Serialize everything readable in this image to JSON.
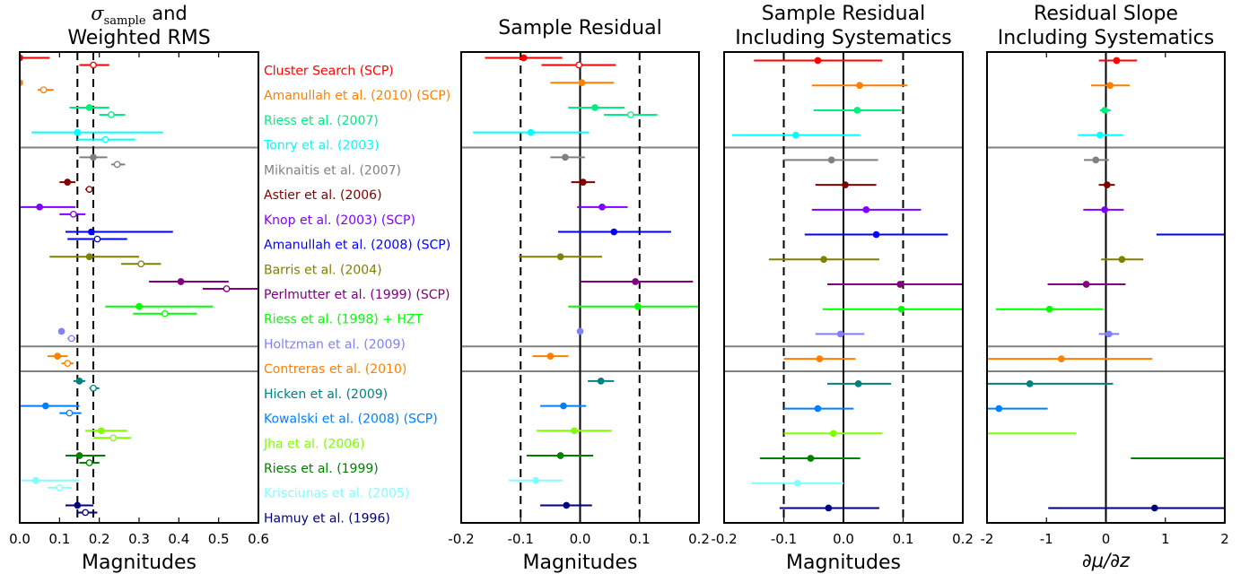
{
  "chart_data": [
    {
      "type": "scatter",
      "panel": "sigma-rms",
      "title_line1": "σsample and",
      "title_symbol": "σ",
      "title_subscript": "sample",
      "title_rest": " and",
      "title_line2": "Weighted RMS",
      "xlabel": "Magnitudes",
      "xlim": [
        0,
        0.6
      ],
      "xticks": [
        "0.0",
        "0.1",
        "0.2",
        "0.3",
        "0.4",
        "0.5",
        "0.6"
      ],
      "vlines_dashed": [
        0.145,
        0.185
      ],
      "hlines_after_rows": [
        3,
        11,
        12
      ],
      "filled_series": [
        {
          "row": 0,
          "x": 0.0,
          "lo": 0.0,
          "hi": 0.075
        },
        {
          "row": 1,
          "x": 0.0,
          "lo": 0.0,
          "hi": 0.0
        },
        {
          "row": 2,
          "x": 0.175,
          "lo": 0.125,
          "hi": 0.225
        },
        {
          "row": 3,
          "x": 0.145,
          "lo": 0.03,
          "hi": 0.36
        },
        {
          "row": 4,
          "x": 0.185,
          "lo": 0.15,
          "hi": 0.22
        },
        {
          "row": 5,
          "x": 0.12,
          "lo": 0.1,
          "hi": 0.14
        },
        {
          "row": 6,
          "x": 0.05,
          "lo": 0.0,
          "hi": 0.14
        },
        {
          "row": 7,
          "x": 0.18,
          "lo": 0.115,
          "hi": 0.385
        },
        {
          "row": 8,
          "x": 0.175,
          "lo": 0.075,
          "hi": 0.3
        },
        {
          "row": 9,
          "x": 0.405,
          "lo": 0.325,
          "hi": 0.525
        },
        {
          "row": 10,
          "x": 0.3,
          "lo": 0.215,
          "hi": 0.485
        },
        {
          "row": 11,
          "x": 0.105,
          "lo": 0.1,
          "hi": 0.11
        },
        {
          "row": 12,
          "x": 0.095,
          "lo": 0.07,
          "hi": 0.12
        },
        {
          "row": 13,
          "x": 0.15,
          "lo": 0.135,
          "hi": 0.165
        },
        {
          "row": 14,
          "x": 0.065,
          "lo": 0.0,
          "hi": 0.15
        },
        {
          "row": 15,
          "x": 0.205,
          "lo": 0.165,
          "hi": 0.27
        },
        {
          "row": 16,
          "x": 0.15,
          "lo": 0.115,
          "hi": 0.215
        },
        {
          "row": 17,
          "x": 0.04,
          "lo": 0.0,
          "hi": 0.15
        },
        {
          "row": 18,
          "x": 0.145,
          "lo": 0.115,
          "hi": 0.185
        }
      ],
      "open_series": [
        {
          "row": 0,
          "x": 0.185,
          "lo": 0.15,
          "hi": 0.225
        },
        {
          "row": 1,
          "x": 0.06,
          "lo": 0.045,
          "hi": 0.085
        },
        {
          "row": 2,
          "x": 0.23,
          "lo": 0.2,
          "hi": 0.265
        },
        {
          "row": 3,
          "x": 0.215,
          "lo": 0.145,
          "hi": 0.29
        },
        {
          "row": 4,
          "x": 0.245,
          "lo": 0.23,
          "hi": 0.265
        },
        {
          "row": 5,
          "x": 0.175,
          "lo": 0.165,
          "hi": 0.185
        },
        {
          "row": 6,
          "x": 0.135,
          "lo": 0.1,
          "hi": 0.165
        },
        {
          "row": 7,
          "x": 0.195,
          "lo": 0.12,
          "hi": 0.27
        },
        {
          "row": 8,
          "x": 0.305,
          "lo": 0.255,
          "hi": 0.355
        },
        {
          "row": 9,
          "x": 0.52,
          "lo": 0.46,
          "hi": 0.6
        },
        {
          "row": 10,
          "x": 0.365,
          "lo": 0.285,
          "hi": 0.445
        },
        {
          "row": 11,
          "x": 0.13,
          "lo": 0.12,
          "hi": 0.14
        },
        {
          "row": 12,
          "x": 0.12,
          "lo": 0.105,
          "hi": 0.135
        },
        {
          "row": 13,
          "x": 0.185,
          "lo": 0.175,
          "hi": 0.2
        },
        {
          "row": 14,
          "x": 0.125,
          "lo": 0.1,
          "hi": 0.155
        },
        {
          "row": 15,
          "x": 0.235,
          "lo": 0.185,
          "hi": 0.28
        },
        {
          "row": 16,
          "x": 0.175,
          "lo": 0.15,
          "hi": 0.2
        },
        {
          "row": 17,
          "x": 0.1,
          "lo": 0.07,
          "hi": 0.13
        },
        {
          "row": 18,
          "x": 0.165,
          "lo": 0.145,
          "hi": 0.195
        }
      ]
    },
    {
      "type": "scatter",
      "panel": "sample-residual",
      "title_line1": "",
      "title_line2": "Sample Residual",
      "xlabel": "Magnitudes",
      "xlim": [
        -0.2,
        0.2
      ],
      "xticks": [
        "-0.2",
        "-0.1",
        "0.0",
        "0.1",
        "0.2"
      ],
      "vline_solid": 0,
      "vlines_dashed": [
        -0.1,
        0.1
      ],
      "hlines_after_rows": [
        3,
        11,
        12
      ],
      "filled_series": [
        {
          "row": 0,
          "x": -0.095,
          "lo": -0.16,
          "hi": -0.03
        },
        {
          "row": 1,
          "x": 0.003,
          "lo": -0.05,
          "hi": 0.057
        },
        {
          "row": 2,
          "x": 0.025,
          "lo": -0.02,
          "hi": 0.075
        },
        {
          "row": 3,
          "x": -0.083,
          "lo": -0.18,
          "hi": 0.015
        },
        {
          "row": 4,
          "x": -0.025,
          "lo": -0.05,
          "hi": 0.008
        },
        {
          "row": 5,
          "x": 0.005,
          "lo": -0.015,
          "hi": 0.025
        },
        {
          "row": 6,
          "x": 0.037,
          "lo": -0.005,
          "hi": 0.08
        },
        {
          "row": 7,
          "x": 0.057,
          "lo": -0.037,
          "hi": 0.153
        },
        {
          "row": 8,
          "x": -0.033,
          "lo": -0.103,
          "hi": 0.037
        },
        {
          "row": 9,
          "x": 0.093,
          "lo": 0.0,
          "hi": 0.19
        },
        {
          "row": 10,
          "x": 0.097,
          "lo": -0.02,
          "hi": 0.2
        },
        {
          "row": 11,
          "x": 0.0,
          "lo": -0.005,
          "hi": 0.005
        },
        {
          "row": 12,
          "x": -0.05,
          "lo": -0.08,
          "hi": -0.02
        },
        {
          "row": 13,
          "x": 0.035,
          "lo": 0.013,
          "hi": 0.057
        },
        {
          "row": 14,
          "x": -0.028,
          "lo": -0.067,
          "hi": 0.01
        },
        {
          "row": 15,
          "x": -0.01,
          "lo": -0.073,
          "hi": 0.053
        },
        {
          "row": 16,
          "x": -0.033,
          "lo": -0.09,
          "hi": 0.022
        },
        {
          "row": 17,
          "x": -0.075,
          "lo": -0.12,
          "hi": -0.03
        },
        {
          "row": 18,
          "x": -0.023,
          "lo": -0.067,
          "hi": 0.02
        }
      ],
      "open_series": [
        {
          "row": 0,
          "x": -0.002,
          "lo": -0.065,
          "hi": 0.06
        },
        {
          "row": 2,
          "x": 0.085,
          "lo": 0.04,
          "hi": 0.13
        }
      ]
    },
    {
      "type": "scatter",
      "panel": "sample-residual-systematics",
      "title_line1": "Sample Residual",
      "title_line2": "Including Systematics",
      "xlabel": "Magnitudes",
      "xlim": [
        -0.2,
        0.2
      ],
      "xticks": [
        "-0.2",
        "-0.1",
        "0.0",
        "0.1",
        "0.2"
      ],
      "vline_solid": 0,
      "vlines_dashed": [
        -0.1,
        0.1
      ],
      "hlines_after_rows": [
        3,
        11,
        12
      ],
      "filled_series": [
        {
          "row": 0,
          "x": -0.043,
          "lo": -0.15,
          "hi": 0.065
        },
        {
          "row": 1,
          "x": 0.027,
          "lo": -0.053,
          "hi": 0.107
        },
        {
          "row": 2,
          "x": 0.023,
          "lo": -0.05,
          "hi": 0.097
        },
        {
          "row": 3,
          "x": -0.08,
          "lo": -0.187,
          "hi": 0.028
        },
        {
          "row": 4,
          "x": -0.02,
          "lo": -0.1,
          "hi": 0.058
        },
        {
          "row": 5,
          "x": 0.003,
          "lo": -0.047,
          "hi": 0.055
        },
        {
          "row": 6,
          "x": 0.038,
          "lo": -0.053,
          "hi": 0.13
        },
        {
          "row": 7,
          "x": 0.055,
          "lo": -0.065,
          "hi": 0.175
        },
        {
          "row": 8,
          "x": -0.033,
          "lo": -0.125,
          "hi": 0.06
        },
        {
          "row": 9,
          "x": 0.095,
          "lo": -0.027,
          "hi": 0.2
        },
        {
          "row": 10,
          "x": 0.097,
          "lo": -0.035,
          "hi": 0.2
        },
        {
          "row": 11,
          "x": -0.005,
          "lo": -0.047,
          "hi": 0.035
        },
        {
          "row": 12,
          "x": -0.04,
          "lo": -0.1,
          "hi": 0.02
        },
        {
          "row": 13,
          "x": 0.025,
          "lo": -0.027,
          "hi": 0.08
        },
        {
          "row": 14,
          "x": -0.043,
          "lo": -0.1,
          "hi": 0.017
        },
        {
          "row": 15,
          "x": -0.017,
          "lo": -0.1,
          "hi": 0.065
        },
        {
          "row": 16,
          "x": -0.055,
          "lo": -0.14,
          "hi": 0.028
        },
        {
          "row": 17,
          "x": -0.077,
          "lo": -0.155,
          "hi": 0.0
        },
        {
          "row": 18,
          "x": -0.025,
          "lo": -0.107,
          "hi": 0.06
        }
      ],
      "open_series": []
    },
    {
      "type": "scatter",
      "panel": "residual-slope-systematics",
      "title_line1": "Residual Slope",
      "title_line2": "Including Systematics",
      "xlabel": "∂μ/∂z",
      "xlim": [
        -2,
        2
      ],
      "xticks": [
        "-2",
        "-1",
        "0",
        "1",
        "2"
      ],
      "vline_solid": 0,
      "vlines_dashed": [],
      "hlines_after_rows": [
        3,
        11,
        12
      ],
      "filled_series": [
        {
          "row": 0,
          "x": 0.18,
          "lo": -0.12,
          "hi": 0.52
        },
        {
          "row": 1,
          "x": 0.07,
          "lo": -0.25,
          "hi": 0.4
        },
        {
          "row": 2,
          "x": -0.02,
          "lo": -0.1,
          "hi": 0.08
        },
        {
          "row": 3,
          "x": -0.1,
          "lo": -0.47,
          "hi": 0.28
        },
        {
          "row": 4,
          "x": -0.17,
          "lo": -0.37,
          "hi": 0.05
        },
        {
          "row": 5,
          "x": 0.02,
          "lo": -0.12,
          "hi": 0.15
        },
        {
          "row": 6,
          "x": -0.02,
          "lo": -0.38,
          "hi": 0.3
        },
        {
          "row": 7,
          "x": 2.1,
          "lo": 0.85,
          "hi": 2.0
        },
        {
          "row": 8,
          "x": 0.27,
          "lo": -0.08,
          "hi": 0.63
        },
        {
          "row": 9,
          "x": -0.33,
          "lo": -0.98,
          "hi": 0.33
        },
        {
          "row": 10,
          "x": -0.95,
          "lo": -1.85,
          "hi": -0.05
        },
        {
          "row": 11,
          "x": 0.05,
          "lo": -0.12,
          "hi": 0.22
        },
        {
          "row": 12,
          "x": -0.75,
          "lo": -2.0,
          "hi": 0.78
        },
        {
          "row": 13,
          "x": -1.28,
          "lo": -2.0,
          "hi": 0.12
        },
        {
          "row": 14,
          "x": -1.8,
          "lo": -2.0,
          "hi": -0.98
        },
        {
          "row": 15,
          "x": -2.1,
          "lo": -2.0,
          "hi": -0.5
        },
        {
          "row": 16,
          "x": 2.1,
          "lo": 0.42,
          "hi": 2.0
        },
        {
          "row": 17,
          "x": 2.1,
          "lo": 2.1,
          "hi": 2.1
        },
        {
          "row": 18,
          "x": 0.82,
          "lo": -0.97,
          "hi": 2.0
        }
      ],
      "open_series": []
    }
  ],
  "datasets": [
    {
      "name": "Cluster Search (SCP)",
      "color": "#ff0000"
    },
    {
      "name": "Amanullah et al. (2010) (SCP)",
      "color": "#ff8000"
    },
    {
      "name": "Riess et al. (2007)",
      "color": "#00ee80"
    },
    {
      "name": "Tonry et al. (2003)",
      "color": "#00ffff"
    },
    {
      "name": "Miknaitis et al. (2007)",
      "color": "#808080"
    },
    {
      "name": "Astier et al. (2006)",
      "color": "#800000"
    },
    {
      "name": "Knop et al. (2003) (SCP)",
      "color": "#8000ff"
    },
    {
      "name": "Amanullah et al. (2008) (SCP)",
      "color": "#0000ff"
    },
    {
      "name": "Barris et al. (2004)",
      "color": "#808000"
    },
    {
      "name": "Perlmutter et al. (1999) (SCP)",
      "color": "#800080"
    },
    {
      "name": "Riess et al. (1998) + HZT",
      "color": "#00ff00"
    },
    {
      "name": "Holtzman et al. (2009)",
      "color": "#8080ff"
    },
    {
      "name": "Contreras et al. (2010)",
      "color": "#ff8000"
    },
    {
      "name": "Hicken et al. (2009)",
      "color": "#008080"
    },
    {
      "name": "Kowalski et al. (2008) (SCP)",
      "color": "#0080ff"
    },
    {
      "name": "Jha et al. (2006)",
      "color": "#80ff00"
    },
    {
      "name": "Riess et al. (1999)",
      "color": "#008000"
    },
    {
      "name": "Krisciunas et al. (2005)",
      "color": "#80ffff"
    },
    {
      "name": "Hamuy et al. (1996)",
      "color": "#000080"
    }
  ]
}
